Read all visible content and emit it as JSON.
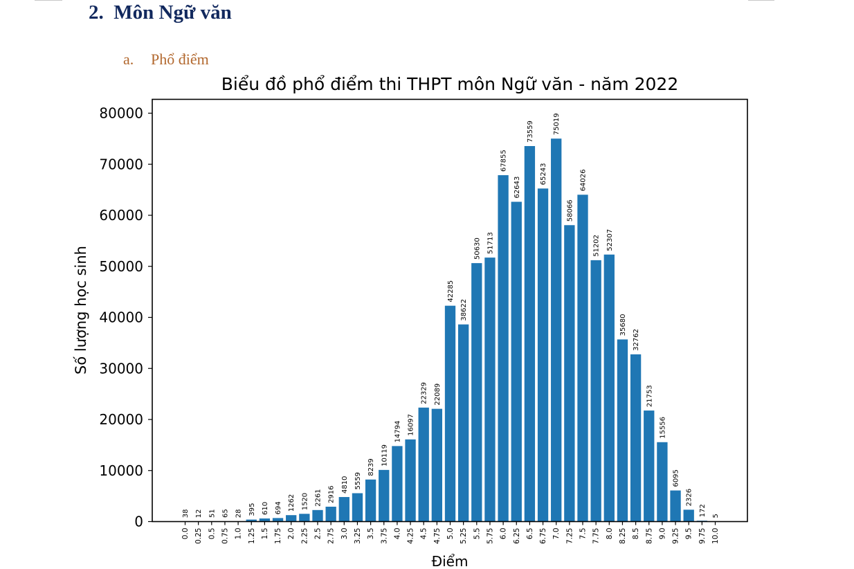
{
  "document": {
    "section_heading": "2.  Môn Ngữ văn",
    "subsection_number": "a.",
    "subsection_title": "Phổ điểm"
  },
  "chart_data": {
    "type": "bar",
    "title": "Biểu đồ phổ điểm thi THPT môn Ngữ văn - năm 2022",
    "xlabel": "Điểm",
    "ylabel": "Số lượng học sinh",
    "ylim": [
      0,
      82000
    ],
    "yticks": [
      0,
      10000,
      20000,
      30000,
      40000,
      50000,
      60000,
      70000,
      80000
    ],
    "grid": false,
    "legend": null,
    "bar_color": "#1f77b4",
    "categories": [
      "0.0",
      "0.25",
      "0.5",
      "0.75",
      "1.0",
      "1.25",
      "1.5",
      "1.75",
      "2.0",
      "2.25",
      "2.5",
      "2.75",
      "3.0",
      "3.25",
      "3.5",
      "3.75",
      "4.0",
      "4.25",
      "4.5",
      "4.75",
      "5.0",
      "5.25",
      "5.5",
      "5.75",
      "6.0",
      "6.25",
      "6.5",
      "6.75",
      "7.0",
      "7.25",
      "7.5",
      "7.75",
      "8.0",
      "8.25",
      "8.5",
      "8.75",
      "9.0",
      "9.25",
      "9.5",
      "9.75",
      "10.0"
    ],
    "values": [
      38,
      12,
      51,
      65,
      28,
      395,
      610,
      694,
      1262,
      1520,
      2261,
      2916,
      4810,
      5559,
      8239,
      10119,
      14794,
      16097,
      22329,
      22089,
      42285,
      38622,
      50630,
      51713,
      67855,
      62643,
      73559,
      65243,
      75019,
      58066,
      64026,
      51202,
      52307,
      35680,
      32762,
      21753,
      15556,
      6095,
      2326,
      172,
      5
    ]
  }
}
